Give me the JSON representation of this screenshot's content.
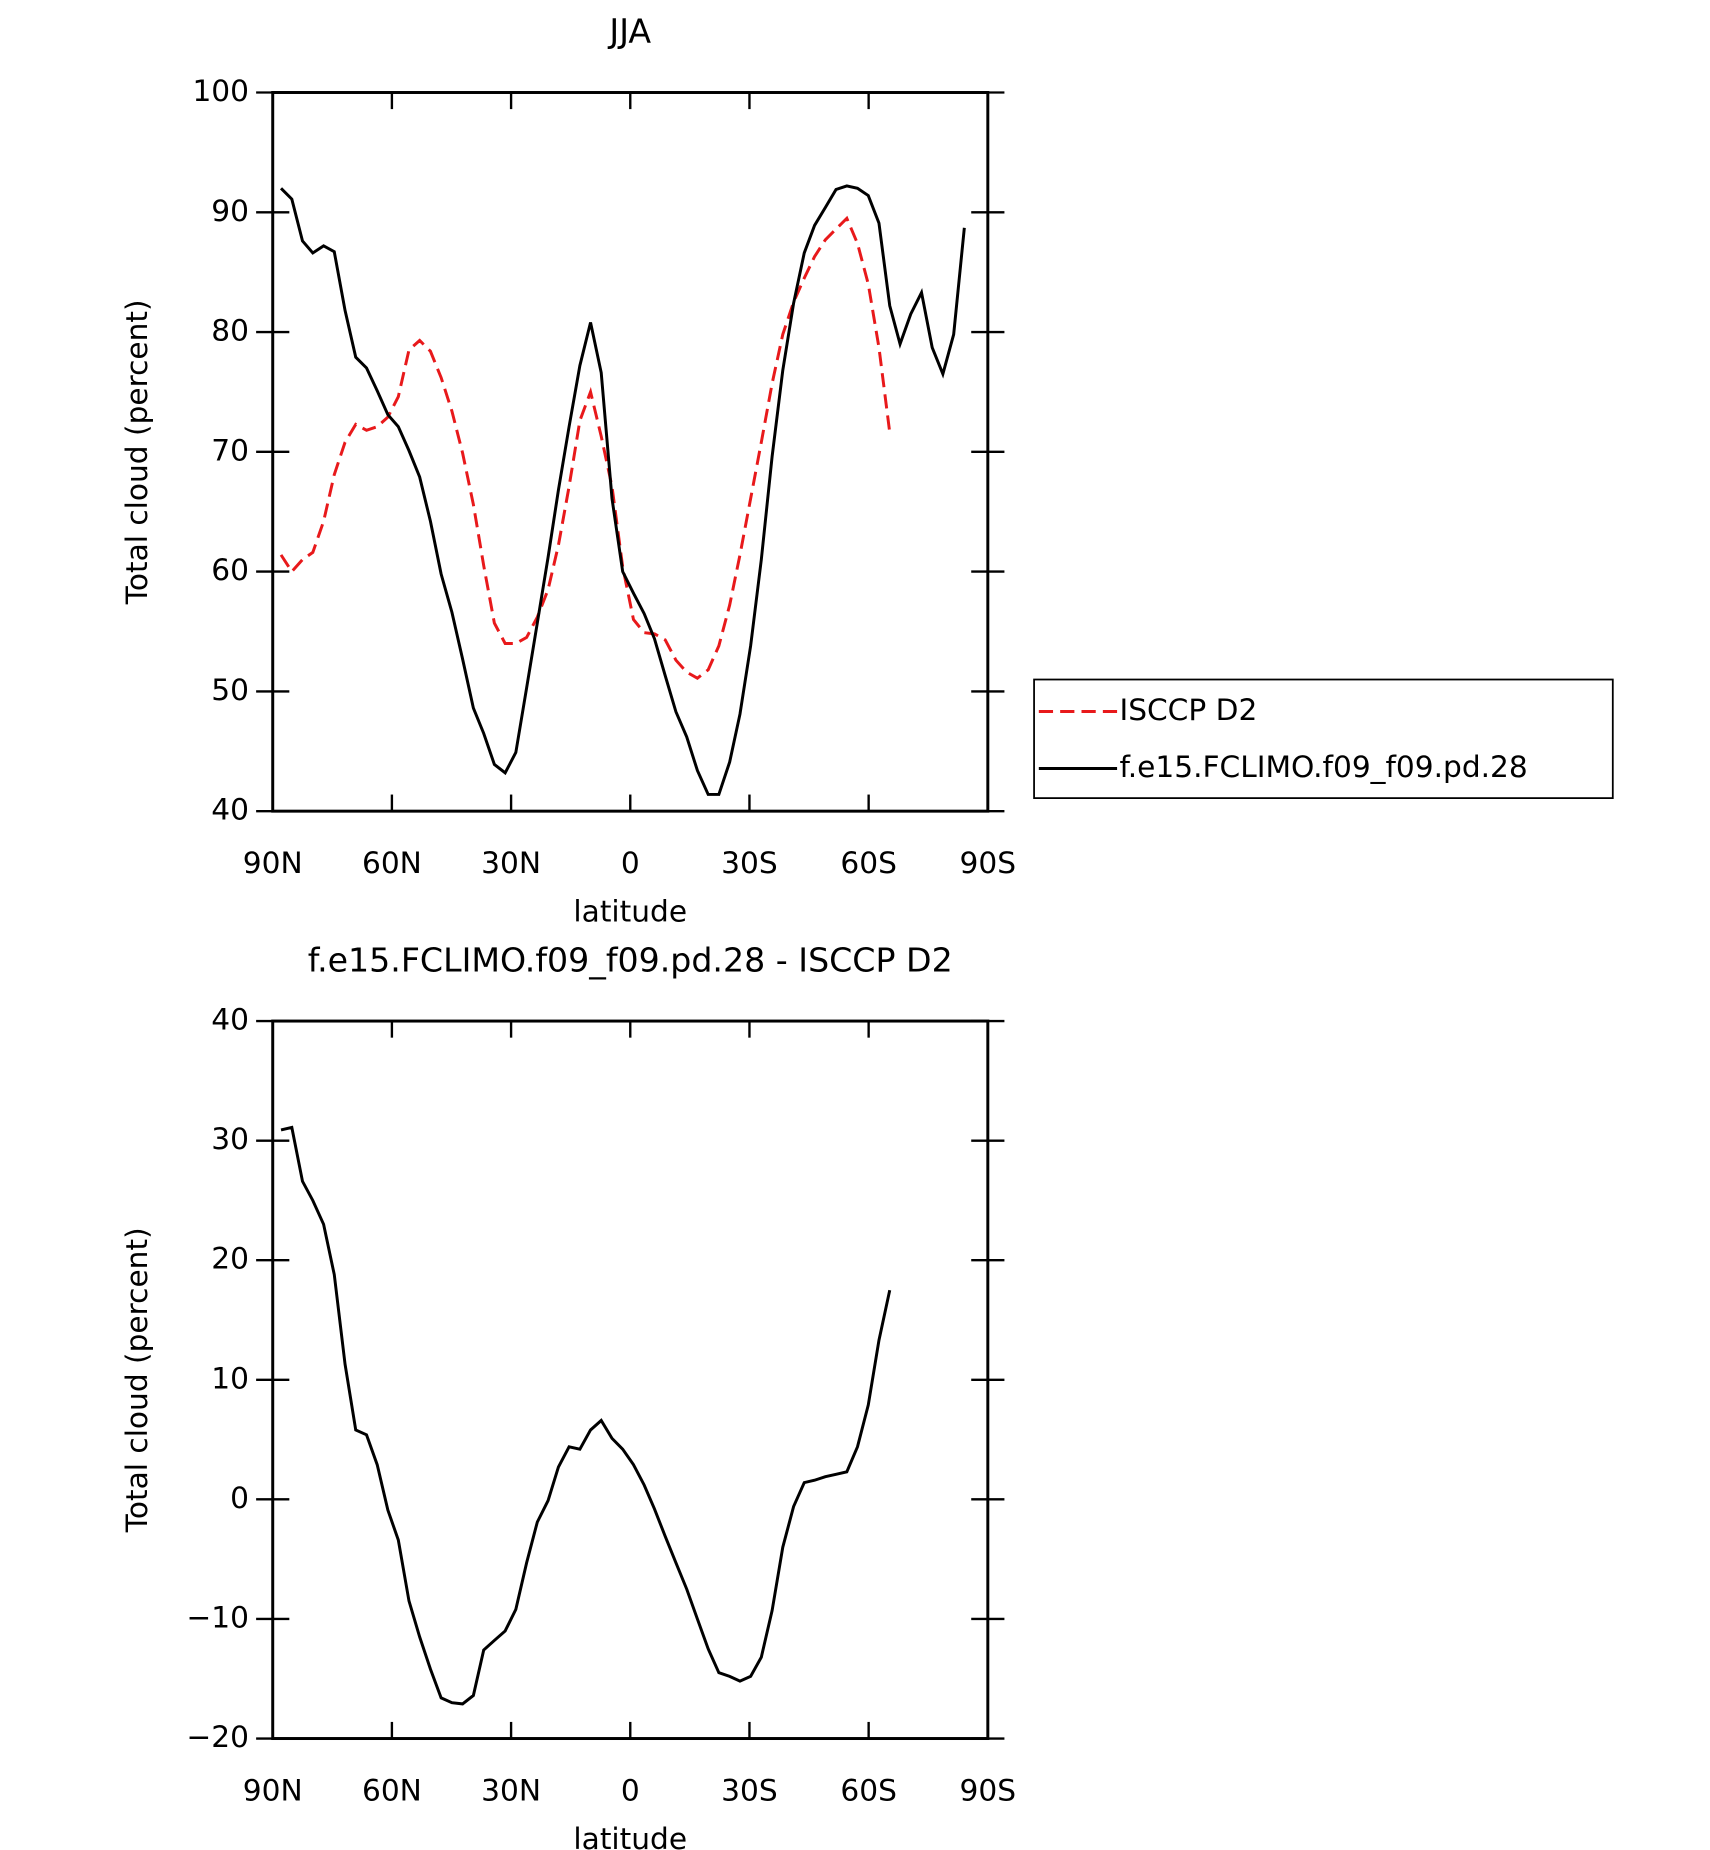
{
  "chart_data": [
    {
      "type": "line",
      "title": "JJA",
      "xlabel": "latitude",
      "ylabel": "Total cloud (percent)",
      "xlim": [
        90,
        -90
      ],
      "ylim": [
        40,
        100
      ],
      "xticks": [
        {
          "value": 90,
          "label": "90N"
        },
        {
          "value": 60,
          "label": "60N"
        },
        {
          "value": 30,
          "label": "30N"
        },
        0,
        {
          "value": -30,
          "label": "30S"
        },
        {
          "value": -60,
          "label": "60S"
        },
        {
          "value": -90,
          "label": "90S"
        }
      ],
      "yticks": [
        40,
        50,
        60,
        70,
        80,
        90,
        100
      ],
      "legend": "right",
      "x": [
        87.9,
        85.2,
        82.5,
        79.9,
        77.2,
        74.5,
        71.8,
        69.1,
        66.4,
        63.7,
        61.0,
        58.4,
        55.7,
        53.0,
        50.3,
        47.6,
        44.9,
        42.2,
        39.5,
        36.9,
        34.2,
        31.5,
        28.8,
        26.1,
        23.4,
        20.7,
        18.1,
        15.4,
        12.7,
        10.0,
        7.3,
        4.6,
        1.9,
        -0.8,
        -3.5,
        -6.1,
        -8.8,
        -11.5,
        -14.2,
        -16.9,
        -19.6,
        -22.3,
        -25.0,
        -27.6,
        -30.3,
        -33.0,
        -35.7,
        -38.4,
        -41.1,
        -43.8,
        -46.4,
        -49.1,
        -51.8,
        -54.5,
        -57.2,
        -59.9,
        -62.6,
        -65.3,
        -67.9,
        -70.6,
        -73.3,
        -76.0,
        -78.7,
        -81.4,
        -84.1
      ],
      "series": [
        {
          "name": "ISCCP D2",
          "color": "#e8191b",
          "dash": true,
          "values": [
            61.4,
            60.0,
            61.0,
            61.6,
            64.2,
            68.1,
            70.8,
            72.3,
            71.8,
            72.1,
            72.9,
            74.6,
            78.5,
            79.3,
            78.4,
            76.2,
            73.4,
            69.9,
            65.6,
            60.5,
            55.7,
            54.0,
            54.0,
            54.5,
            56.2,
            58.5,
            62.2,
            67.1,
            72.6,
            75.0,
            71.3,
            67.1,
            60.4,
            56.0,
            54.9,
            54.8,
            54.3,
            52.6,
            51.6,
            51.1,
            51.8,
            53.8,
            57.2,
            61.4,
            66.1,
            70.8,
            75.7,
            79.8,
            82.5,
            84.5,
            86.3,
            87.7,
            88.6,
            89.5,
            87.4,
            84.0,
            78.7,
            71.6,
            null,
            null,
            null,
            null,
            null,
            null,
            null
          ]
        },
        {
          "name": "f.e15.FCLIMO.f09_f09.pd.28",
          "color": "#000000",
          "dash": false,
          "values": [
            92.0,
            91.1,
            87.6,
            86.6,
            87.2,
            86.7,
            81.8,
            77.9,
            77.0,
            75.1,
            73.1,
            72.1,
            70.1,
            67.9,
            64.2,
            59.8,
            56.6,
            52.7,
            48.6,
            46.5,
            43.9,
            43.2,
            44.9,
            50.3,
            55.7,
            61.2,
            66.8,
            72.1,
            77.2,
            80.8,
            76.6,
            66.1,
            60.0,
            58.2,
            56.5,
            54.4,
            51.3,
            48.3,
            46.2,
            43.4,
            41.4,
            41.4,
            44.1,
            48.1,
            53.8,
            61.0,
            69.6,
            76.8,
            82.4,
            86.6,
            88.9,
            90.4,
            91.9,
            92.2,
            92.0,
            91.4,
            89.1,
            82.2,
            79.0,
            81.5,
            83.3,
            78.7,
            76.5,
            79.8,
            88.7
          ]
        }
      ]
    },
    {
      "type": "line",
      "title": "f.e15.FCLIMO.f09_f09.pd.28 - ISCCP D2",
      "xlabel": "latitude",
      "ylabel": "Total cloud (percent)",
      "xlim": [
        90,
        -90
      ],
      "ylim": [
        -20,
        40
      ],
      "xticks": [
        {
          "value": 90,
          "label": "90N"
        },
        {
          "value": 60,
          "label": "60N"
        },
        {
          "value": 30,
          "label": "30N"
        },
        0,
        {
          "value": -30,
          "label": "30S"
        },
        {
          "value": -60,
          "label": "60S"
        },
        {
          "value": -90,
          "label": "90S"
        }
      ],
      "yticks": [
        {
          "value": -20,
          "label": "−20"
        },
        {
          "value": -10,
          "label": "−10"
        },
        0,
        10,
        20,
        30,
        40
      ],
      "x": [
        87.9,
        85.2,
        82.5,
        79.9,
        77.2,
        74.5,
        71.8,
        69.1,
        66.4,
        63.7,
        61.0,
        58.4,
        55.7,
        53.0,
        50.3,
        47.6,
        44.9,
        42.2,
        39.5,
        36.9,
        34.2,
        31.5,
        28.8,
        26.1,
        23.4,
        20.7,
        18.1,
        15.4,
        12.7,
        10.0,
        7.3,
        4.6,
        1.9,
        -0.8,
        -3.5,
        -6.1,
        -8.8,
        -11.5,
        -14.2,
        -16.9,
        -19.6,
        -22.3,
        -25.0,
        -27.6,
        -30.3,
        -33.0,
        -35.7,
        -38.4,
        -41.1,
        -43.8,
        -46.4,
        -49.1,
        -51.8,
        -54.5,
        -57.2,
        -59.9,
        -62.6,
        -65.3,
        -67.9,
        -70.6,
        -73.3,
        -76.0,
        -78.7,
        -81.4,
        -84.1
      ],
      "series": [
        {
          "color": "#000000",
          "dash": false,
          "values": [
            30.9,
            31.1,
            26.6,
            25.0,
            23.0,
            18.8,
            11.3,
            5.8,
            5.4,
            2.9,
            -0.9,
            -3.4,
            -8.5,
            -11.5,
            -14.2,
            -16.6,
            -17.0,
            -17.1,
            -16.4,
            -12.6,
            -11.8,
            -11.0,
            -9.2,
            -5.3,
            -1.9,
            -0.1,
            2.7,
            4.4,
            4.2,
            5.8,
            6.6,
            5.1,
            4.2,
            2.9,
            1.2,
            -0.8,
            -3.1,
            -5.3,
            -7.5,
            -10.0,
            -12.5,
            -14.5,
            -14.8,
            -15.2,
            -14.8,
            -13.2,
            -9.3,
            -4.0,
            -0.6,
            1.4,
            1.6,
            1.9,
            2.1,
            2.3,
            4.4,
            7.9,
            13.3,
            17.5,
            null,
            null,
            null,
            null,
            null,
            null,
            null
          ]
        }
      ]
    }
  ]
}
